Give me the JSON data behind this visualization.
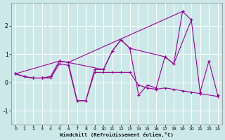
{
  "xlabel": "Windchill (Refroidissement éolien,°C)",
  "bg_color": "#cce8e8",
  "line_color": "#990099",
  "grid_color": "#ffffff",
  "x_data": [
    0,
    1,
    2,
    3,
    4,
    5,
    6,
    7,
    8,
    9,
    10,
    11,
    12,
    13,
    14,
    15,
    16,
    17,
    18,
    19,
    20,
    21,
    22,
    23
  ],
  "series": [
    {
      "x": [
        0,
        1,
        2,
        3,
        4,
        5,
        6,
        19
      ],
      "y": [
        0.3,
        0.2,
        0.15,
        0.15,
        0.2,
        0.75,
        0.7,
        2.5
      ]
    },
    {
      "x": [
        0,
        5,
        6,
        10,
        11,
        12,
        13,
        17,
        18,
        20
      ],
      "y": [
        0.3,
        0.75,
        0.7,
        0.45,
        1.1,
        1.5,
        1.2,
        0.9,
        0.65,
        2.2
      ]
    },
    {
      "x": [
        0,
        1,
        2,
        3,
        4,
        5,
        6,
        7,
        8,
        9,
        10,
        11,
        12,
        13,
        14,
        15,
        16,
        17,
        18,
        19,
        20,
        21,
        22,
        23
      ],
      "y": [
        0.3,
        0.2,
        0.15,
        0.15,
        0.2,
        0.75,
        0.7,
        -0.65,
        -0.65,
        0.45,
        0.45,
        1.1,
        1.5,
        1.2,
        -0.45,
        -0.1,
        -0.2,
        0.9,
        0.65,
        2.5,
        2.2,
        -0.35,
        0.75,
        -0.45
      ]
    },
    {
      "x": [
        0,
        1,
        2,
        3,
        4,
        5,
        6,
        7,
        8,
        9,
        10,
        11,
        12,
        13,
        14,
        15,
        16,
        17,
        18,
        19,
        20,
        21,
        23
      ],
      "y": [
        0.3,
        0.2,
        0.15,
        0.15,
        0.15,
        0.65,
        0.6,
        -0.65,
        -0.65,
        0.35,
        0.35,
        0.35,
        0.35,
        0.35,
        -0.1,
        -0.2,
        -0.25,
        -0.2,
        -0.25,
        -0.3,
        -0.35,
        -0.4,
        -0.5
      ]
    }
  ],
  "ylim": [
    -1.5,
    2.8
  ],
  "xlim": [
    -0.5,
    23.5
  ],
  "yticks": [
    -1,
    0,
    1,
    2
  ],
  "xticks": [
    0,
    1,
    2,
    3,
    4,
    5,
    6,
    7,
    8,
    9,
    10,
    11,
    12,
    13,
    14,
    15,
    16,
    17,
    18,
    19,
    20,
    21,
    22,
    23
  ]
}
